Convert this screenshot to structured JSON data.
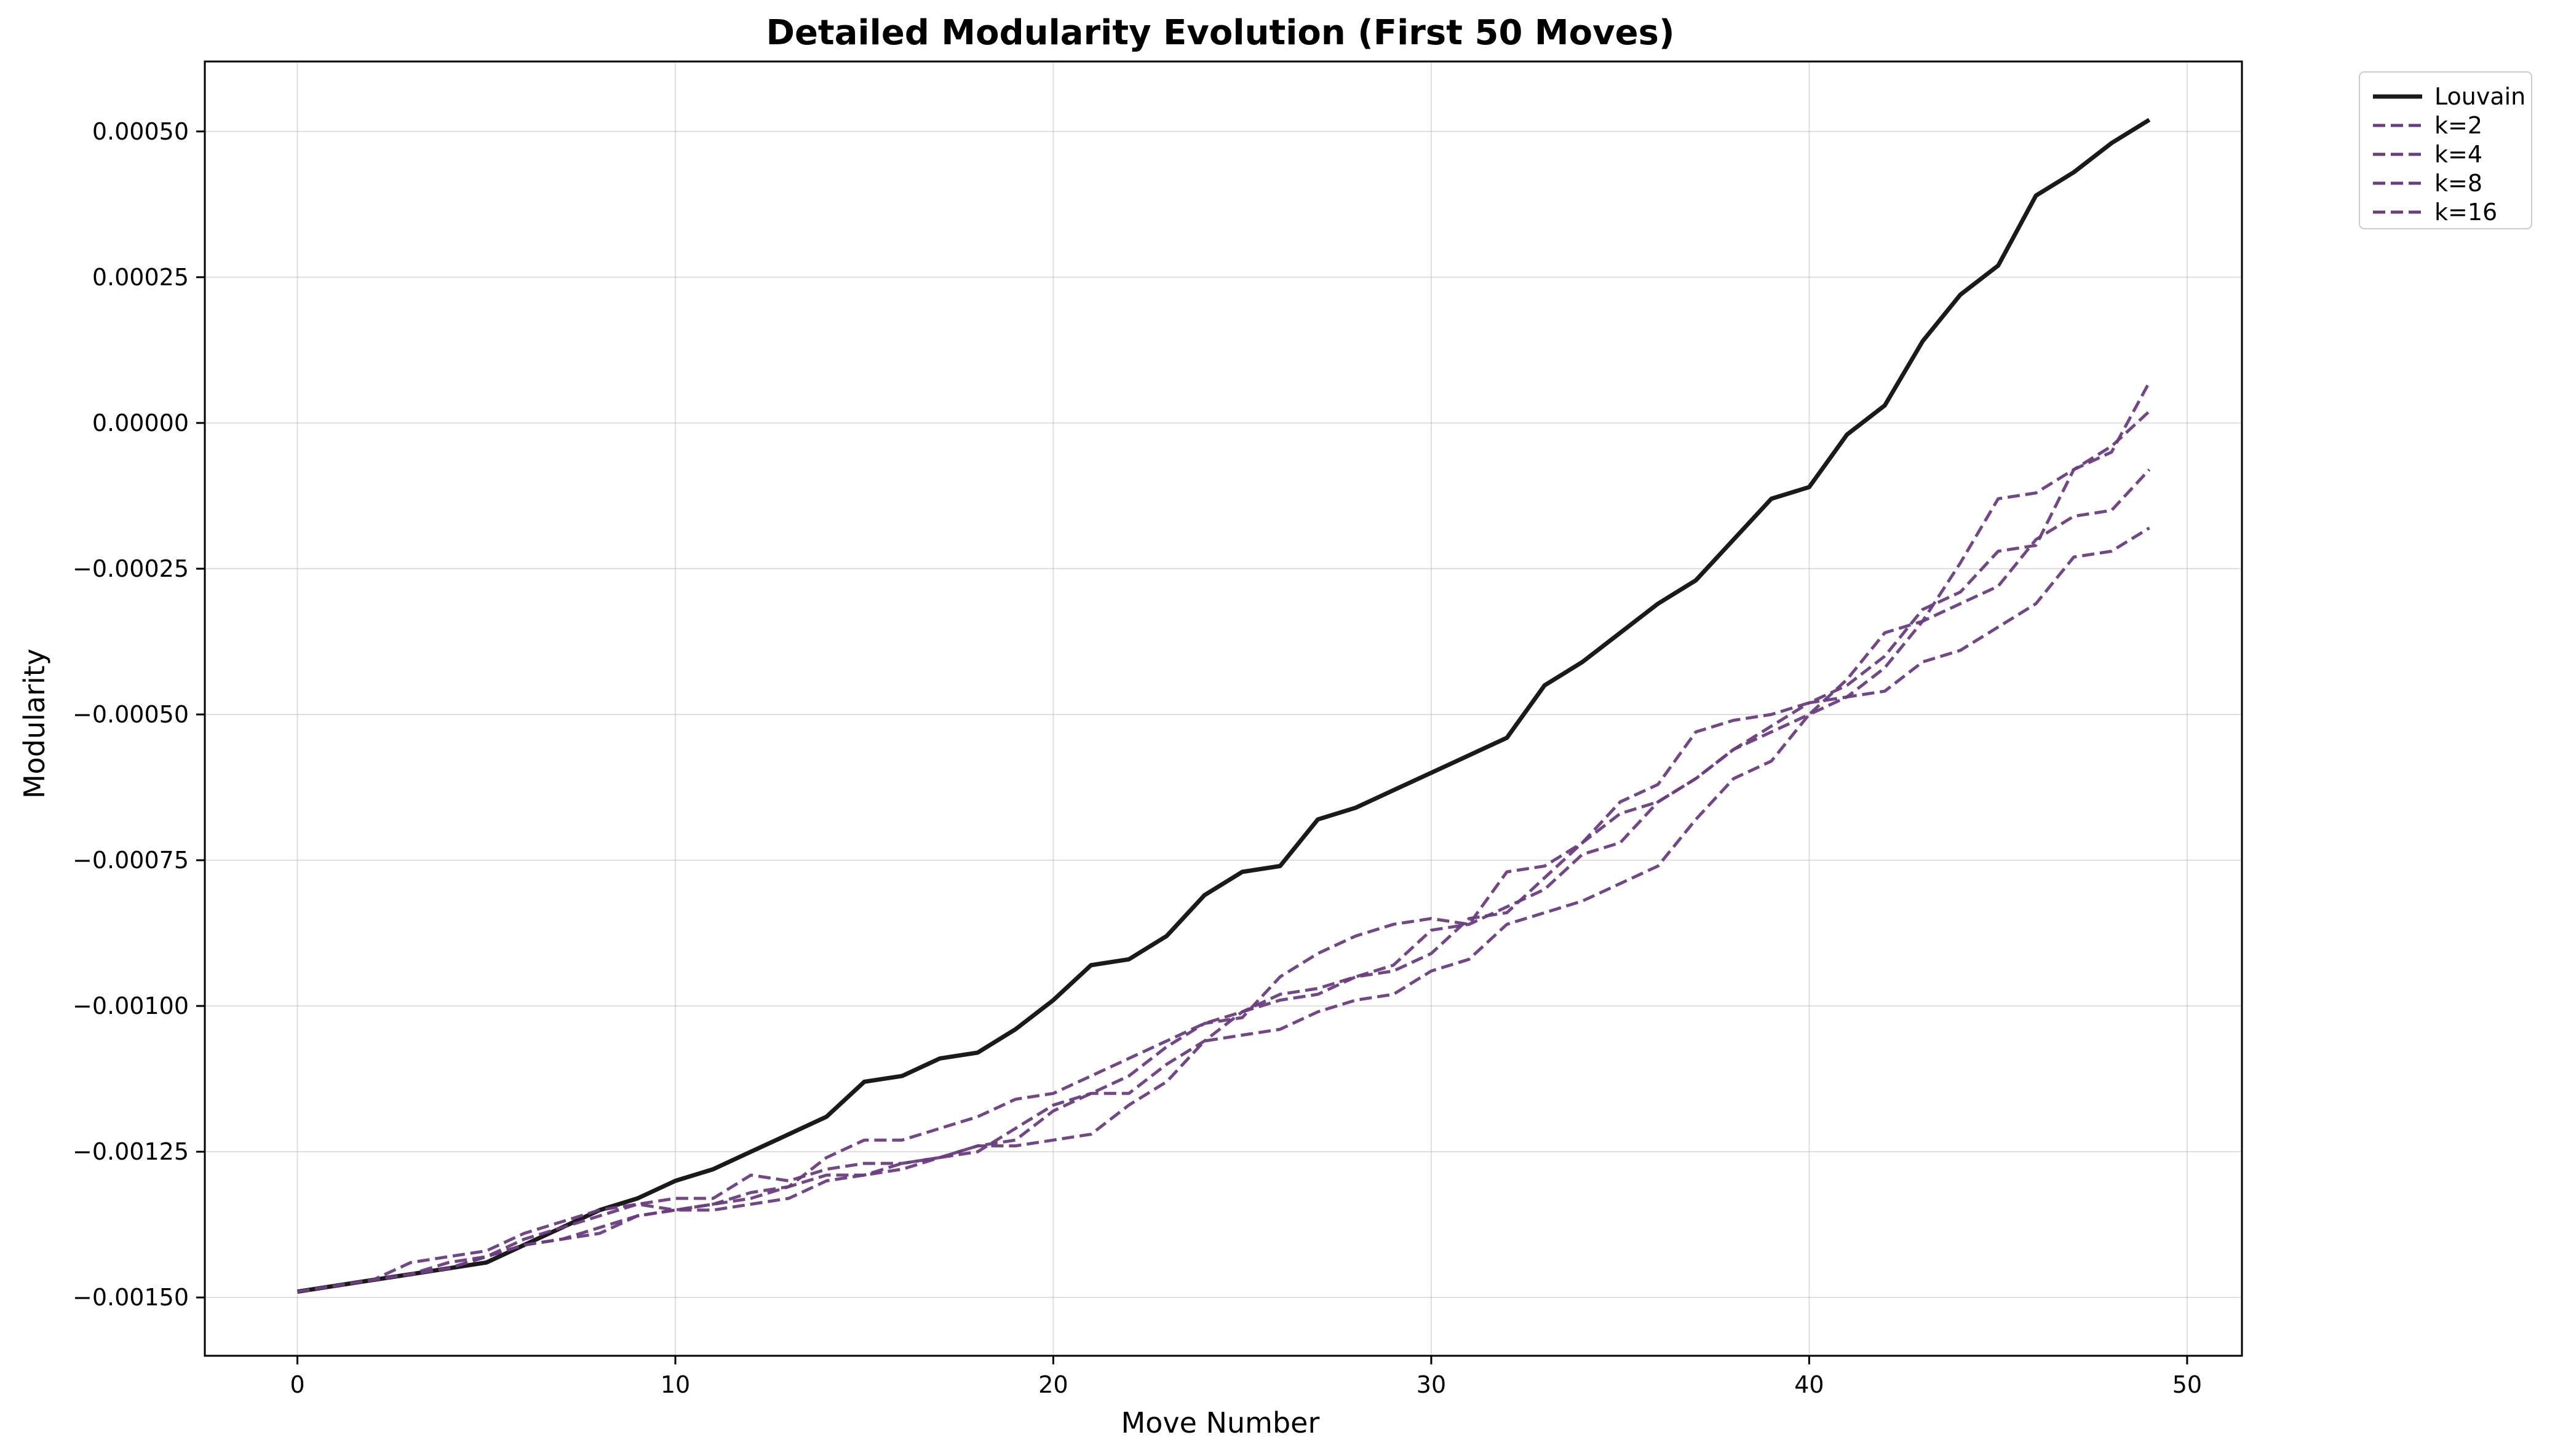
{
  "chart_data": {
    "type": "line",
    "title": "Detailed Modularity Evolution (First 50 Moves)",
    "xlabel": "Move Number",
    "ylabel": "Modularity",
    "xlim": [
      -2.45,
      51.45
    ],
    "ylim": [
      -0.0016,
      0.00062
    ],
    "x_ticks": [
      0,
      10,
      20,
      30,
      40,
      50
    ],
    "x_tick_labels": [
      "0",
      "10",
      "20",
      "30",
      "40",
      "50"
    ],
    "y_ticks": [
      0.0005,
      0.00025,
      0.0,
      -0.00025,
      -0.0005,
      -0.00075,
      -0.001,
      -0.00125,
      -0.0015
    ],
    "y_tick_labels": [
      "0.00050",
      "0.00025",
      "0.00000",
      "−0.00025",
      "−0.00050",
      "−0.00075",
      "−0.00100",
      "−0.00125",
      "−0.00150"
    ],
    "grid": true,
    "legend_position": "outside-top-right",
    "x": [
      0,
      1,
      2,
      3,
      4,
      5,
      6,
      7,
      8,
      9,
      10,
      11,
      12,
      13,
      14,
      15,
      16,
      17,
      18,
      19,
      20,
      21,
      22,
      23,
      24,
      25,
      26,
      27,
      28,
      29,
      30,
      31,
      32,
      33,
      34,
      35,
      36,
      37,
      38,
      39,
      40,
      41,
      42,
      43,
      44,
      45,
      46,
      47,
      48,
      49
    ],
    "series": [
      {
        "name": "Louvain",
        "color": "#1a1a1a",
        "style": "solid",
        "values": [
          -0.00149,
          -0.00148,
          -0.00147,
          -0.00146,
          -0.00145,
          -0.00144,
          -0.00141,
          -0.00138,
          -0.00135,
          -0.00133,
          -0.0013,
          -0.00128,
          -0.00125,
          -0.00122,
          -0.00119,
          -0.00113,
          -0.00112,
          -0.00109,
          -0.00108,
          -0.00104,
          -0.00099,
          -0.00093,
          -0.00092,
          -0.00088,
          -0.00081,
          -0.00077,
          -0.00076,
          -0.00068,
          -0.00066,
          -0.00063,
          -0.0006,
          -0.00057,
          -0.00054,
          -0.00045,
          -0.00041,
          -0.00036,
          -0.00031,
          -0.00027,
          -0.0002,
          -0.00013,
          -0.00011,
          -2e-05,
          3e-05,
          0.00014,
          0.00022,
          0.00027,
          0.00039,
          0.00043,
          0.00048,
          0.00052
        ]
      },
      {
        "name": "k=2",
        "color": "#6a3d7f",
        "style": "dashed",
        "values": [
          -0.00149,
          -0.00148,
          -0.00147,
          -0.00146,
          -0.00145,
          -0.00143,
          -0.00141,
          -0.0014,
          -0.00139,
          -0.00136,
          -0.00135,
          -0.00135,
          -0.00134,
          -0.00133,
          -0.0013,
          -0.00129,
          -0.00128,
          -0.00126,
          -0.00124,
          -0.00124,
          -0.00123,
          -0.00122,
          -0.00117,
          -0.00113,
          -0.00106,
          -0.00105,
          -0.00104,
          -0.00101,
          -0.00099,
          -0.00098,
          -0.00094,
          -0.00092,
          -0.00086,
          -0.00084,
          -0.00082,
          -0.00079,
          -0.00076,
          -0.00068,
          -0.00061,
          -0.00058,
          -0.0005,
          -0.00047,
          -0.00046,
          -0.00041,
          -0.00039,
          -0.00035,
          -0.00031,
          -0.00023,
          -0.00022,
          -0.00018
        ]
      },
      {
        "name": "k=4",
        "color": "#6a3d7f",
        "style": "dashed",
        "values": [
          -0.00149,
          -0.00148,
          -0.00147,
          -0.00146,
          -0.00145,
          -0.00143,
          -0.00141,
          -0.0014,
          -0.00138,
          -0.00136,
          -0.00135,
          -0.00134,
          -0.00133,
          -0.00131,
          -0.00129,
          -0.00129,
          -0.00127,
          -0.00126,
          -0.00125,
          -0.00121,
          -0.00117,
          -0.00115,
          -0.00115,
          -0.0011,
          -0.00106,
          -0.00101,
          -0.00098,
          -0.00097,
          -0.00095,
          -0.00093,
          -0.00087,
          -0.00086,
          -0.00083,
          -0.0008,
          -0.00074,
          -0.00072,
          -0.00065,
          -0.00061,
          -0.00056,
          -0.00053,
          -0.0005,
          -0.00044,
          -0.00036,
          -0.00034,
          -0.00024,
          -0.00013,
          -0.00012,
          -8e-05,
          -5e-05,
          7e-05
        ]
      },
      {
        "name": "k=8",
        "color": "#6a3d7f",
        "style": "dashed",
        "values": [
          -0.00149,
          -0.00148,
          -0.00147,
          -0.00144,
          -0.00143,
          -0.00142,
          -0.00139,
          -0.00137,
          -0.00135,
          -0.00134,
          -0.00133,
          -0.00133,
          -0.00129,
          -0.0013,
          -0.00128,
          -0.00127,
          -0.00127,
          -0.00126,
          -0.00124,
          -0.00123,
          -0.00118,
          -0.00115,
          -0.00112,
          -0.00107,
          -0.00103,
          -0.00102,
          -0.00095,
          -0.00091,
          -0.00088,
          -0.00086,
          -0.00085,
          -0.00086,
          -0.00077,
          -0.00076,
          -0.00072,
          -0.00067,
          -0.00065,
          -0.00061,
          -0.00056,
          -0.00052,
          -0.00048,
          -0.00047,
          -0.00042,
          -0.00034,
          -0.00031,
          -0.00028,
          -0.0002,
          -0.00016,
          -0.00015,
          -8e-05
        ]
      },
      {
        "name": "k=16",
        "color": "#6a3d7f",
        "style": "dashed",
        "values": [
          -0.00149,
          -0.00148,
          -0.00147,
          -0.00146,
          -0.00144,
          -0.00143,
          -0.0014,
          -0.00138,
          -0.00136,
          -0.00134,
          -0.00135,
          -0.00134,
          -0.00132,
          -0.00131,
          -0.00126,
          -0.00123,
          -0.00123,
          -0.00121,
          -0.00119,
          -0.00116,
          -0.00115,
          -0.00112,
          -0.00109,
          -0.00106,
          -0.00103,
          -0.00101,
          -0.00099,
          -0.00098,
          -0.00095,
          -0.00094,
          -0.00091,
          -0.00085,
          -0.00084,
          -0.00078,
          -0.00072,
          -0.00065,
          -0.00062,
          -0.00053,
          -0.00051,
          -0.0005,
          -0.00048,
          -0.00045,
          -0.0004,
          -0.00032,
          -0.00029,
          -0.00022,
          -0.00021,
          -8e-05,
          -4e-05,
          2e-05
        ]
      }
    ]
  }
}
